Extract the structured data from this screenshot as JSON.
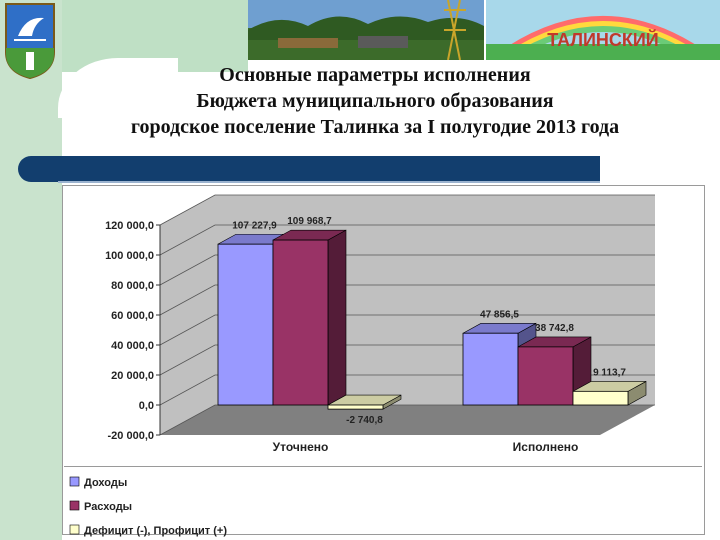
{
  "header": {
    "title_lines": [
      "Основные параметры исполнения",
      "Бюджета муниципального образования",
      "городское поселение Талинка за I полугодие 2013 года"
    ],
    "banner_text": "ТАЛИНСКИЙ"
  },
  "chart_data": {
    "type": "bar",
    "categories": [
      "Уточнено",
      "Исполнено"
    ],
    "series": [
      {
        "name": "Доходы",
        "values": [
          107227.9,
          47856.5
        ],
        "color": "#9999ff",
        "labels": [
          "107 227,9",
          "47 856,5"
        ]
      },
      {
        "name": "Расходы",
        "values": [
          109968.7,
          38742.8
        ],
        "color": "#993366",
        "labels": [
          "109 968,7",
          "38 742,8"
        ]
      },
      {
        "name": "Дефицит (-), Профицит (+)",
        "values": [
          -2740.8,
          9113.7
        ],
        "color": "#ffffcc",
        "labels": [
          "-2 740,8",
          "9 113,7"
        ]
      }
    ],
    "ylim": [
      -20000,
      120000
    ],
    "yticks": [
      "120 000,0",
      "100 000,0",
      "80 000,0",
      "60 000,0",
      "40 000,0",
      "20 000,0",
      "0,0",
      "-20 000,0"
    ],
    "grid": true,
    "legend_position": "bottom"
  },
  "colors": {
    "accent_bar": "#123e6e",
    "wall": "#c0c0c0",
    "floor": "#808080"
  }
}
